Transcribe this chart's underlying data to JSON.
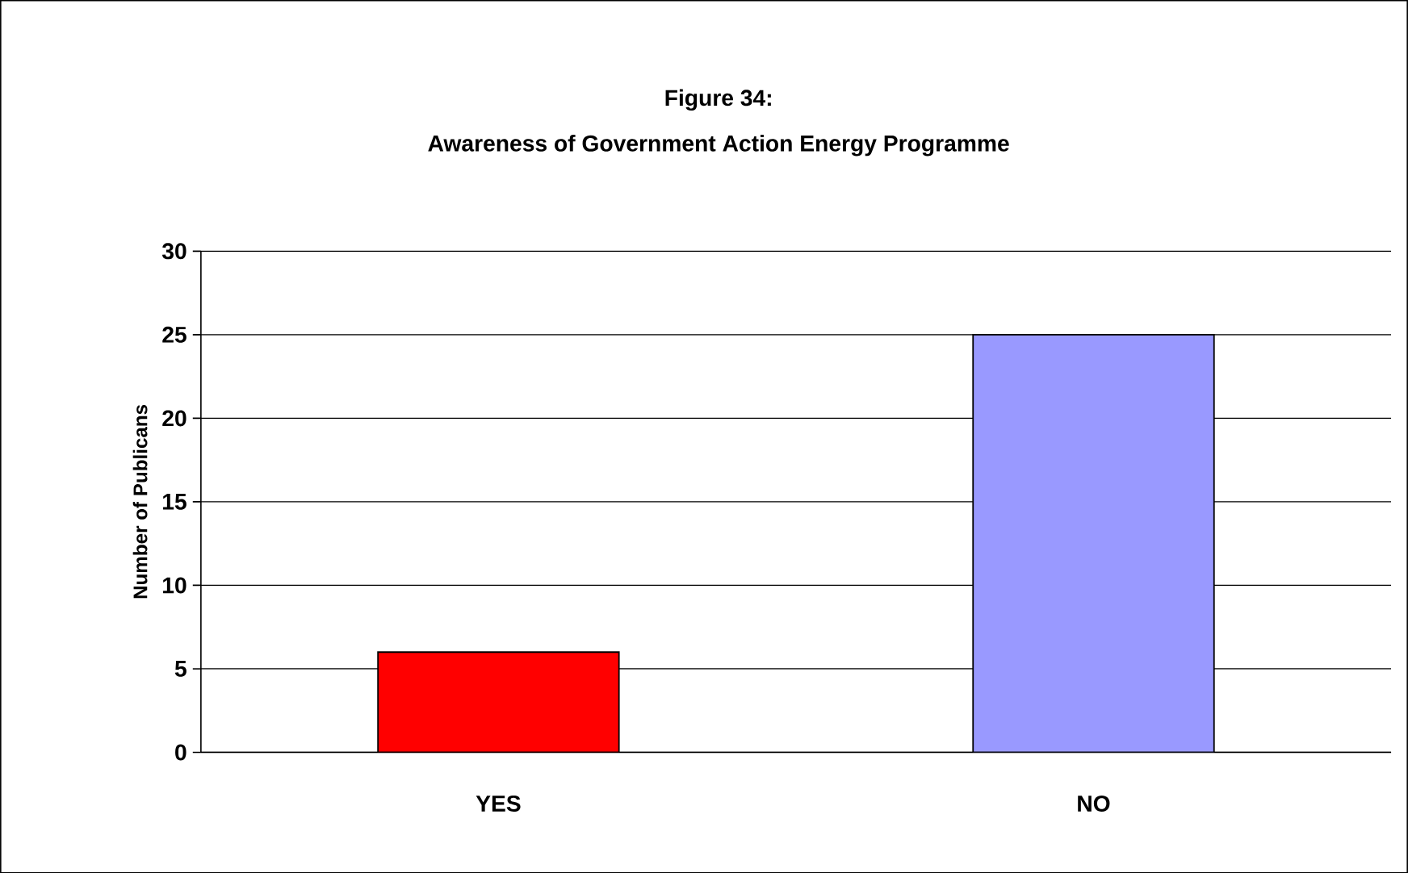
{
  "chart_data": {
    "type": "bar",
    "title": "Figure 34:",
    "subtitle": "Awareness of Government Action Energy Programme",
    "ylabel": "Number of Publicans",
    "categories": [
      "YES",
      "NO"
    ],
    "values": [
      6,
      25
    ],
    "colors": [
      "#ff0000",
      "#9999ff"
    ],
    "ylim": [
      0,
      30
    ],
    "yticks": [
      0,
      5,
      10,
      15,
      20,
      25,
      30
    ],
    "grid": "y"
  }
}
